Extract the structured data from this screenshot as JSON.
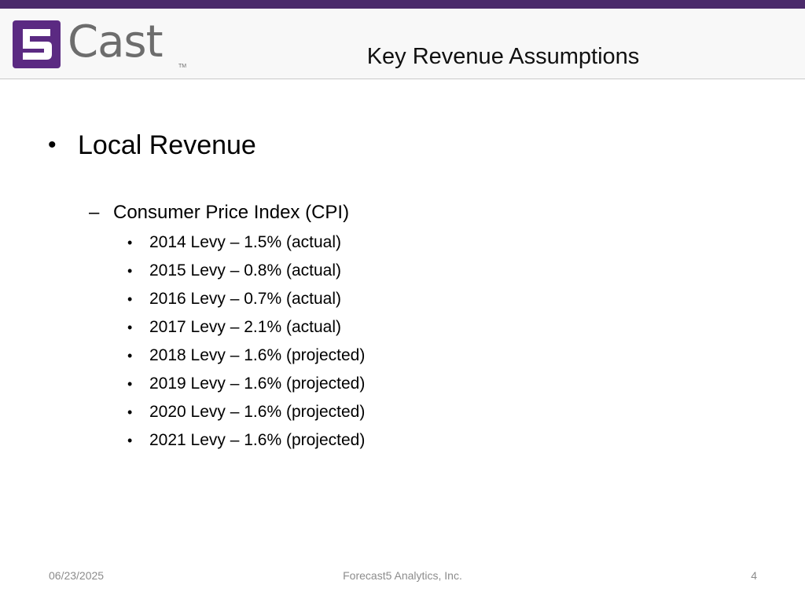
{
  "colors": {
    "top_bar": "#4b2a6b",
    "logo_mark": "#5b2a82",
    "logo_text": "#6d6d6d",
    "footer_text": "#8c8c8c"
  },
  "logo": {
    "mark": "5",
    "text": "Cast",
    "trademark": "TM"
  },
  "header": {
    "title": "Key Revenue Assumptions"
  },
  "content": {
    "level1": {
      "bullet": "•",
      "text": "Local Revenue"
    },
    "level2": {
      "dash": "–",
      "text": "Consumer Price Index (CPI)"
    },
    "items": [
      {
        "bullet": "•",
        "text": "2014 Levy – 1.5% (actual)"
      },
      {
        "bullet": "•",
        "text": "2015 Levy – 0.8% (actual)"
      },
      {
        "bullet": "•",
        "text": "2016 Levy – 0.7% (actual)"
      },
      {
        "bullet": "•",
        "text": "2017 Levy – 2.1% (actual)"
      },
      {
        "bullet": "•",
        "text": "2018 Levy – 1.6% (projected)"
      },
      {
        "bullet": "•",
        "text": "2019 Levy – 1.6% (projected)"
      },
      {
        "bullet": "•",
        "text": "2020 Levy – 1.6% (projected)"
      },
      {
        "bullet": "•",
        "text": "2021 Levy – 1.6% (projected)"
      }
    ]
  },
  "footer": {
    "date": "06/23/2025",
    "company": "Forecast5 Analytics, Inc.",
    "page": "4"
  }
}
